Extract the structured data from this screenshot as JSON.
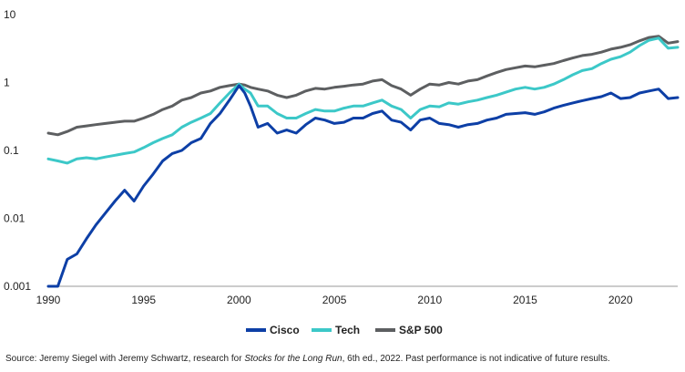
{
  "chart_data": {
    "type": "line",
    "title": "",
    "xlabel": "",
    "ylabel": "",
    "y_scale": "log",
    "ylim": [
      0.001,
      10
    ],
    "xlim": [
      1990,
      2023
    ],
    "x_ticks": [
      "1990",
      "1995",
      "2000",
      "2005",
      "2010",
      "2015",
      "2020"
    ],
    "y_ticks": [
      "10",
      "1",
      "0.1",
      "0.01",
      "0.001"
    ],
    "legend_position": "bottom-center",
    "grid": false,
    "series": [
      {
        "name": "Cisco",
        "color": "#0d3fa6",
        "x": [
          1990,
          1990.5,
          1991,
          1991.5,
          1992,
          1992.5,
          1993,
          1993.5,
          1994,
          1994.5,
          1995,
          1995.5,
          1996,
          1996.5,
          1997,
          1997.5,
          1998,
          1998.5,
          1999,
          1999.5,
          2000,
          2000.3,
          2000.6,
          2001,
          2001.5,
          2002,
          2002.5,
          2003,
          2003.5,
          2004,
          2004.5,
          2005,
          2005.5,
          2006,
          2006.5,
          2007,
          2007.5,
          2008,
          2008.5,
          2009,
          2009.5,
          2010,
          2010.5,
          2011,
          2011.5,
          2012,
          2012.5,
          2013,
          2013.5,
          2014,
          2014.5,
          2015,
          2015.5,
          2016,
          2016.5,
          2017,
          2017.5,
          2018,
          2018.5,
          2019,
          2019.5,
          2020,
          2020.5,
          2021,
          2021.5,
          2022,
          2022.5,
          2023
        ],
        "values": [
          0.001,
          0.001,
          0.0025,
          0.003,
          0.005,
          0.008,
          0.012,
          0.018,
          0.026,
          0.018,
          0.03,
          0.045,
          0.07,
          0.09,
          0.1,
          0.13,
          0.15,
          0.25,
          0.35,
          0.55,
          0.9,
          0.7,
          0.45,
          0.22,
          0.25,
          0.18,
          0.2,
          0.18,
          0.24,
          0.3,
          0.28,
          0.25,
          0.26,
          0.3,
          0.3,
          0.35,
          0.38,
          0.28,
          0.26,
          0.2,
          0.28,
          0.3,
          0.25,
          0.24,
          0.22,
          0.24,
          0.25,
          0.28,
          0.3,
          0.34,
          0.35,
          0.36,
          0.34,
          0.37,
          0.42,
          0.46,
          0.5,
          0.54,
          0.58,
          0.62,
          0.7,
          0.58,
          0.6,
          0.7,
          0.75,
          0.8,
          0.58,
          0.6
        ]
      },
      {
        "name": "Tech",
        "color": "#3cc8c8",
        "x": [
          1990,
          1990.5,
          1991,
          1991.5,
          1992,
          1992.5,
          1993,
          1993.5,
          1994,
          1994.5,
          1995,
          1995.5,
          1996,
          1996.5,
          1997,
          1997.5,
          1998,
          1998.5,
          1999,
          1999.5,
          2000,
          2000.3,
          2000.6,
          2001,
          2001.5,
          2002,
          2002.5,
          2003,
          2003.5,
          2004,
          2004.5,
          2005,
          2005.5,
          2006,
          2006.5,
          2007,
          2007.5,
          2008,
          2008.5,
          2009,
          2009.5,
          2010,
          2010.5,
          2011,
          2011.5,
          2012,
          2012.5,
          2013,
          2013.5,
          2014,
          2014.5,
          2015,
          2015.5,
          2016,
          2016.5,
          2017,
          2017.5,
          2018,
          2018.5,
          2019,
          2019.5,
          2020,
          2020.5,
          2021,
          2021.5,
          2022,
          2022.5,
          2023
        ],
        "values": [
          0.075,
          0.07,
          0.065,
          0.075,
          0.078,
          0.075,
          0.08,
          0.085,
          0.09,
          0.095,
          0.11,
          0.13,
          0.15,
          0.17,
          0.22,
          0.26,
          0.3,
          0.35,
          0.5,
          0.7,
          0.95,
          0.8,
          0.7,
          0.45,
          0.45,
          0.35,
          0.3,
          0.3,
          0.35,
          0.4,
          0.38,
          0.38,
          0.42,
          0.45,
          0.45,
          0.5,
          0.55,
          0.45,
          0.4,
          0.3,
          0.4,
          0.45,
          0.44,
          0.5,
          0.48,
          0.52,
          0.55,
          0.6,
          0.65,
          0.72,
          0.8,
          0.85,
          0.8,
          0.85,
          0.95,
          1.1,
          1.3,
          1.5,
          1.6,
          1.9,
          2.2,
          2.4,
          2.8,
          3.5,
          4.2,
          4.5,
          3.2,
          3.3
        ]
      },
      {
        "name": "S&P 500",
        "color": "#5d5f61",
        "x": [
          1990,
          1990.5,
          1991,
          1991.5,
          1992,
          1992.5,
          1993,
          1993.5,
          1994,
          1994.5,
          1995,
          1995.5,
          1996,
          1996.5,
          1997,
          1997.5,
          1998,
          1998.5,
          1999,
          1999.5,
          2000,
          2000.3,
          2000.6,
          2001,
          2001.5,
          2002,
          2002.5,
          2003,
          2003.5,
          2004,
          2004.5,
          2005,
          2005.5,
          2006,
          2006.5,
          2007,
          2007.5,
          2008,
          2008.5,
          2009,
          2009.5,
          2010,
          2010.5,
          2011,
          2011.5,
          2012,
          2012.5,
          2013,
          2013.5,
          2014,
          2014.5,
          2015,
          2015.5,
          2016,
          2016.5,
          2017,
          2017.5,
          2018,
          2018.5,
          2019,
          2019.5,
          2020,
          2020.5,
          2021,
          2021.5,
          2022,
          2022.5,
          2023
        ],
        "values": [
          0.18,
          0.17,
          0.19,
          0.22,
          0.23,
          0.24,
          0.25,
          0.26,
          0.27,
          0.27,
          0.3,
          0.34,
          0.4,
          0.45,
          0.55,
          0.6,
          0.7,
          0.75,
          0.85,
          0.9,
          0.95,
          0.92,
          0.85,
          0.8,
          0.75,
          0.65,
          0.6,
          0.65,
          0.75,
          0.82,
          0.8,
          0.85,
          0.88,
          0.92,
          0.95,
          1.05,
          1.1,
          0.9,
          0.8,
          0.65,
          0.8,
          0.95,
          0.92,
          1.0,
          0.95,
          1.05,
          1.1,
          1.25,
          1.4,
          1.55,
          1.65,
          1.75,
          1.7,
          1.8,
          1.9,
          2.1,
          2.3,
          2.5,
          2.6,
          2.8,
          3.1,
          3.3,
          3.6,
          4.1,
          4.6,
          4.8,
          3.8,
          4.0
        ]
      }
    ]
  },
  "source_note": {
    "prefix": "Source: Jeremy Siegel with Jeremy Schwartz, research for ",
    "book_title": "Stocks for the Long Run",
    "suffix": ", 6th ed., 2022. Past performance is not indicative of future results."
  }
}
